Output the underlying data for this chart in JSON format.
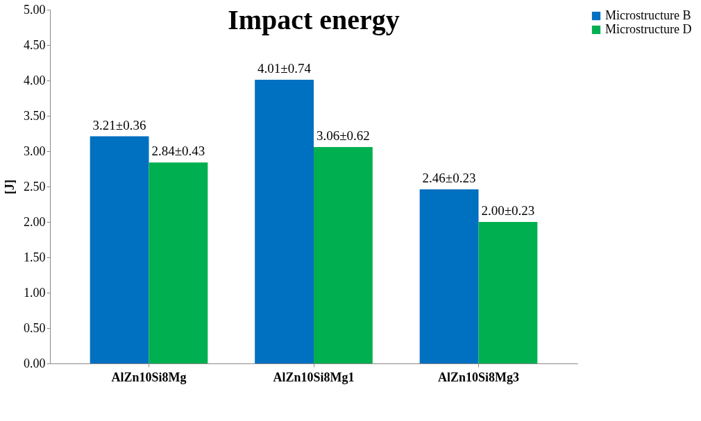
{
  "chart_data": {
    "type": "bar",
    "title": "Impact energy",
    "ylabel": "[J]",
    "categories": [
      "AlZn10Si8Mg",
      "AlZn10Si8Mg1",
      "AlZn10Si8Mg3"
    ],
    "series": [
      {
        "name": "Microstructure B",
        "color": "#0070c0",
        "values": [
          3.21,
          4.01,
          2.46
        ],
        "value_labels": [
          "3.21±0.36",
          "4.01±0.74",
          "2.46±0.23"
        ]
      },
      {
        "name": "Microstructure D",
        "color": "#00b050",
        "values": [
          2.84,
          3.06,
          2.0
        ],
        "value_labels": [
          "2.84±0.43",
          "3.06±0.62",
          "2.00±0.23"
        ]
      }
    ],
    "ylim": [
      0,
      5
    ],
    "yticks": [
      {
        "value": 0,
        "label": "0.00"
      },
      {
        "value": 0.5,
        "label": "0.50"
      },
      {
        "value": 1,
        "label": "1.00"
      },
      {
        "value": 1.5,
        "label": "1.50"
      },
      {
        "value": 2,
        "label": "2.00"
      },
      {
        "value": 2.5,
        "label": "2.50"
      },
      {
        "value": 3,
        "label": "3.00"
      },
      {
        "value": 3.5,
        "label": "3.50"
      },
      {
        "value": 4,
        "label": "4.00"
      },
      {
        "value": 4.5,
        "label": "4.50"
      },
      {
        "value": 5,
        "label": "5.00"
      }
    ],
    "grid": false,
    "legend": "right"
  }
}
